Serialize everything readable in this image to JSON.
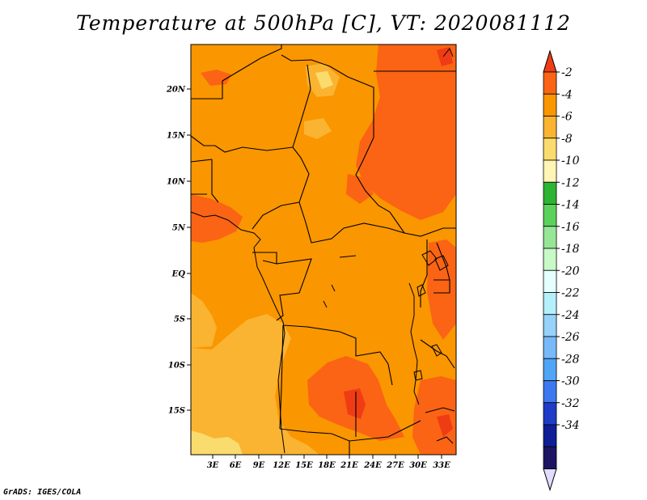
{
  "title": "Temperature at 500hPa [C], VT: 2020081112",
  "credit": "GrADS: IGES/COLA",
  "map": {
    "lat_labels": [
      "20N",
      "15N",
      "10N",
      "5N",
      "EQ",
      "5S",
      "10S",
      "15S"
    ],
    "lon_labels": [
      "3E",
      "6E",
      "9E",
      "12E",
      "15E",
      "18E",
      "21E",
      "24E",
      "27E",
      "30E",
      "33E"
    ]
  },
  "colorbar": {
    "labels": [
      "-2",
      "-4",
      "-6",
      "-8",
      "-10",
      "-12",
      "-14",
      "-16",
      "-18",
      "-20",
      "-22",
      "-24",
      "-26",
      "-28",
      "-30",
      "-32",
      "-34"
    ],
    "colors": [
      "#f03c14",
      "#fa6414",
      "#fa9600",
      "#fab432",
      "#fadc6e",
      "#fff5b4",
      "#2db432",
      "#5ad25a",
      "#96e696",
      "#c8fac8",
      "#e6ffff",
      "#b4f0fa",
      "#96d2fa",
      "#78b9fa",
      "#50a5f5",
      "#3c78f0",
      "#1e3cc8",
      "#0f1e96",
      "#1e1464",
      "#e1dcff"
    ]
  }
}
